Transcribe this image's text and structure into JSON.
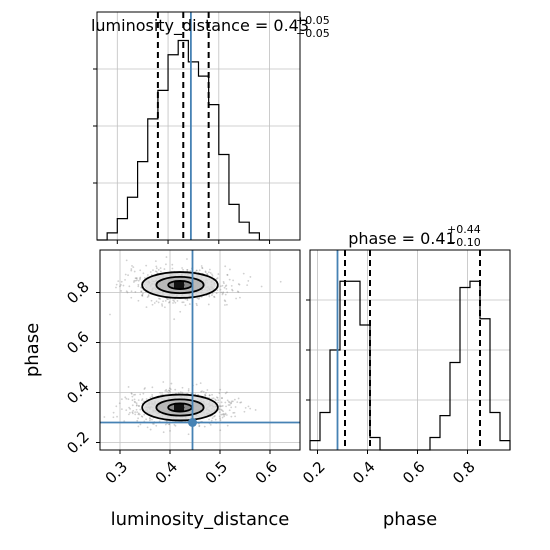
{
  "chart_data": [
    {
      "panel": "luminosity_distance-marginal",
      "type": "histogram",
      "title": {
        "param": "luminosity_distance",
        "value": "0.43",
        "plus": "+0.05",
        "minus": "−0.05"
      },
      "xlim": [
        0.26,
        0.66
      ],
      "ylim": [
        0,
        0.32
      ],
      "grid": true,
      "bin_edges": [
        0.26,
        0.28,
        0.3,
        0.32,
        0.34,
        0.36,
        0.38,
        0.4,
        0.42,
        0.44,
        0.46,
        0.48,
        0.5,
        0.52,
        0.54,
        0.56,
        0.58,
        0.6
      ],
      "counts": [
        0.0,
        0.01,
        0.03,
        0.06,
        0.11,
        0.17,
        0.21,
        0.26,
        0.28,
        0.25,
        0.23,
        0.19,
        0.12,
        0.05,
        0.025,
        0.01,
        0.0
      ],
      "quantiles": [
        0.38,
        0.43,
        0.48
      ],
      "truth": 0.445
    },
    {
      "panel": "phase-marginal",
      "type": "histogram",
      "title": {
        "param": "phase",
        "value": "0.41",
        "plus": "+0.44",
        "minus": "−0.10"
      },
      "xlim": [
        0.17,
        0.97
      ],
      "ylim": [
        0,
        0.32
      ],
      "grid": true,
      "bin_edges": [
        0.17,
        0.21,
        0.25,
        0.29,
        0.33,
        0.37,
        0.41,
        0.45,
        0.49,
        0.53,
        0.57,
        0.61,
        0.65,
        0.69,
        0.73,
        0.77,
        0.81,
        0.85,
        0.89,
        0.93,
        0.97
      ],
      "counts": [
        0.015,
        0.06,
        0.16,
        0.27,
        0.27,
        0.2,
        0.02,
        0.0,
        0.0,
        0.0,
        0.0,
        0.0,
        0.02,
        0.055,
        0.14,
        0.26,
        0.27,
        0.21,
        0.06,
        0.015
      ],
      "quantiles": [
        0.31,
        0.41,
        0.85
      ],
      "truth": 0.28
    },
    {
      "panel": "joint",
      "type": "scatter",
      "xlabel": "luminosity_distance",
      "ylabel": "phase",
      "xlim": [
        0.26,
        0.66
      ],
      "ylim": [
        0.17,
        0.97
      ],
      "truth": [
        0.445,
        0.28
      ],
      "modes": [
        {
          "x": 0.42,
          "y": 0.83,
          "sx": 0.045,
          "sy": 0.045
        },
        {
          "x": 0.42,
          "y": 0.34,
          "sx": 0.045,
          "sy": 0.045
        }
      ],
      "contour_levels": [
        0.5,
        1.0,
        1.6
      ]
    }
  ],
  "axes": {
    "x_ticks_ld": [
      "0.3",
      "0.4",
      "0.5",
      "0.6"
    ],
    "x_ticks_phase": [
      "0.2",
      "0.4",
      "0.6",
      "0.8"
    ],
    "y_ticks_phase": [
      "0.2",
      "0.4",
      "0.6",
      "0.8"
    ]
  },
  "colors": {
    "truth": "#4682b4",
    "line": "#000000",
    "grid": "#c0c0c0"
  }
}
